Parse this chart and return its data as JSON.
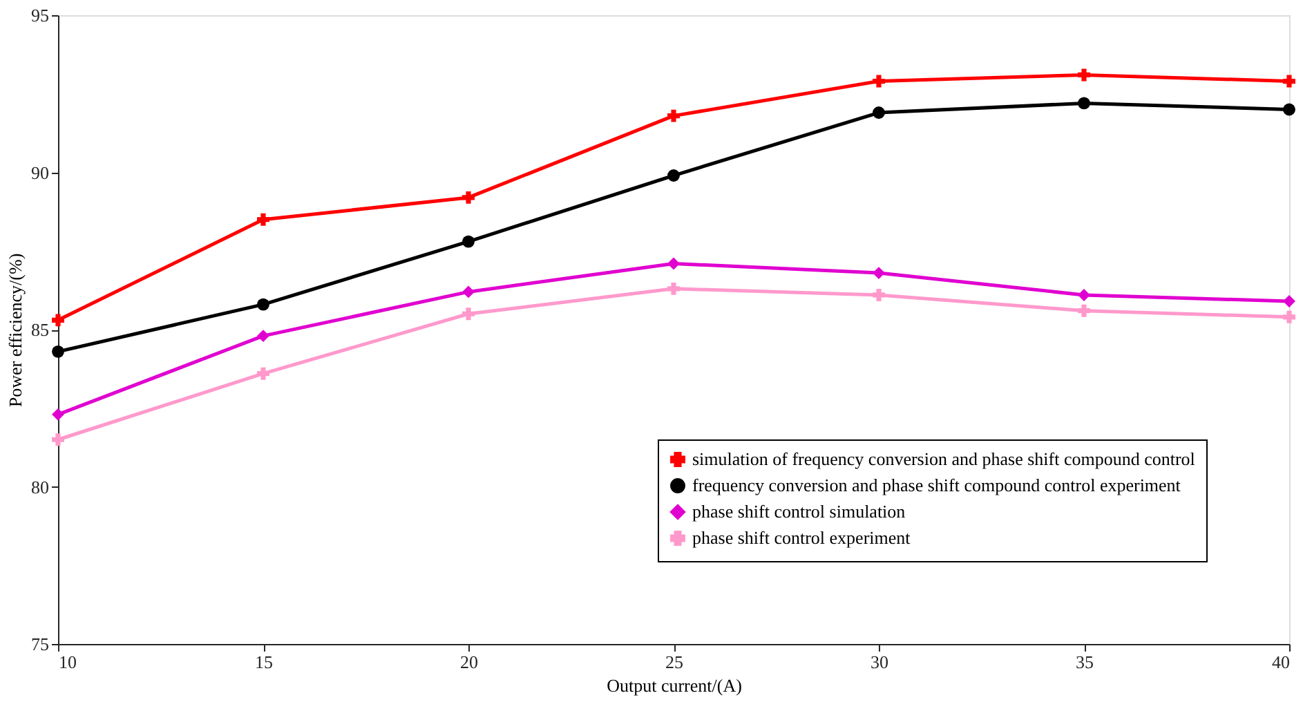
{
  "chart_data": {
    "type": "line",
    "xlabel": "Output current/(A)",
    "ylabel": "Power efficiency/(%)",
    "x": [
      10,
      15,
      20,
      25,
      30,
      35,
      40
    ],
    "xlim": [
      10,
      40
    ],
    "xticks": [
      10,
      15,
      20,
      25,
      30,
      35,
      40
    ],
    "ylim": [
      75,
      95
    ],
    "yticks": [
      75,
      80,
      85,
      90,
      95
    ],
    "grid": false,
    "legend": "bottom right",
    "line_style": "solid",
    "series": [
      {
        "name": "simulation of frequency conversion and phase shift compound control",
        "color": "#ff0000",
        "marker": "cross",
        "values": [
          85.3,
          88.5,
          89.2,
          91.8,
          92.9,
          93.1,
          92.9
        ]
      },
      {
        "name": "frequency conversion and phase shift compound control experiment",
        "color": "#000000",
        "marker": "circle",
        "values": [
          84.3,
          85.8,
          87.8,
          89.9,
          91.9,
          92.2,
          92.0
        ]
      },
      {
        "name": "phase shift control simulation",
        "color": "#e000d0",
        "marker": "diamond",
        "values": [
          82.3,
          84.8,
          86.2,
          87.1,
          86.8,
          86.1,
          85.9
        ]
      },
      {
        "name": "phase shift control experiment",
        "color": "#ff99cc",
        "marker": "cross",
        "values": [
          81.5,
          83.6,
          85.5,
          86.3,
          86.1,
          85.6,
          85.4
        ]
      }
    ]
  }
}
